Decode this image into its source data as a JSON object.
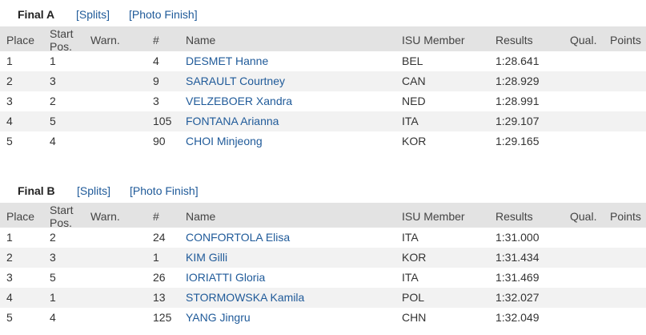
{
  "sections": [
    {
      "title": "Final A",
      "links": [
        "[Splits]",
        "[Photo Finish]"
      ],
      "header": [
        "Place",
        "Start Pos.",
        "Warn.",
        "#",
        "Name",
        "ISU Member",
        "Results",
        "Qual.",
        "Points"
      ],
      "rows": [
        [
          "1",
          "1",
          "4",
          "DESMET Hanne",
          "BEL",
          "1:28.641"
        ],
        [
          "2",
          "3",
          "9",
          "SARAULT Courtney",
          "CAN",
          "1:28.929"
        ],
        [
          "3",
          "2",
          "3",
          "VELZEBOER Xandra",
          "NED",
          "1:28.991"
        ],
        [
          "4",
          "5",
          "105",
          "FONTANA Arianna",
          "ITA",
          "1:29.107"
        ],
        [
          "5",
          "4",
          "90",
          "CHOI Minjeong",
          "KOR",
          "1:29.165"
        ]
      ]
    },
    {
      "title": "Final B",
      "links": [
        "[Splits]",
        "[Photo Finish]"
      ],
      "header": [
        "Place",
        "Start Pos.",
        "Warn.",
        "#",
        "Name",
        "ISU Member",
        "Results",
        "Qual.",
        "Points"
      ],
      "rows": [
        [
          "1",
          "2",
          "24",
          "CONFORTOLA Elisa",
          "ITA",
          "1:31.000"
        ],
        [
          "2",
          "3",
          "1",
          "KIM Gilli",
          "KOR",
          "1:31.434"
        ],
        [
          "3",
          "5",
          "26",
          "IORIATTI Gloria",
          "ITA",
          "1:31.469"
        ],
        [
          "4",
          "1",
          "13",
          "STORMOWSKA Kamila",
          "POL",
          "1:32.027"
        ],
        [
          "5",
          "4",
          "125",
          "YANG Jingru",
          "CHN",
          "1:32.049"
        ]
      ]
    }
  ]
}
